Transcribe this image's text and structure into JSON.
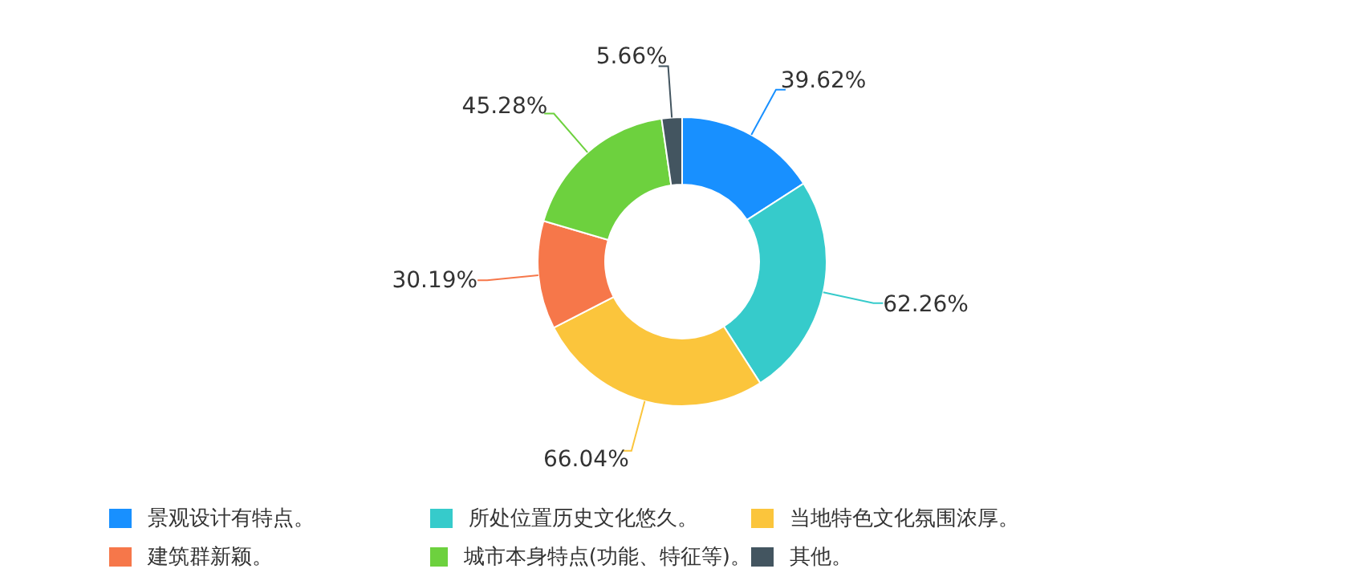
{
  "chart_data": {
    "type": "donut",
    "categories": [
      "景观设计有特点。",
      "所处位置历史文化悠久。",
      "当地特色文化氛围浓厚。",
      "建筑群新颖。",
      "城市本身特点(功能、特征等)。",
      "其他。"
    ],
    "values": [
      39.62,
      62.26,
      66.04,
      30.19,
      45.28,
      5.66
    ],
    "value_labels": [
      "39.62%",
      "62.26%",
      "66.04%",
      "30.19%",
      "45.28%",
      "5.66%"
    ],
    "colors": [
      "#1890ff",
      "#36cbcb",
      "#fbc53c",
      "#f6774a",
      "#6dd13e",
      "#435560"
    ],
    "legend": "bottom"
  }
}
